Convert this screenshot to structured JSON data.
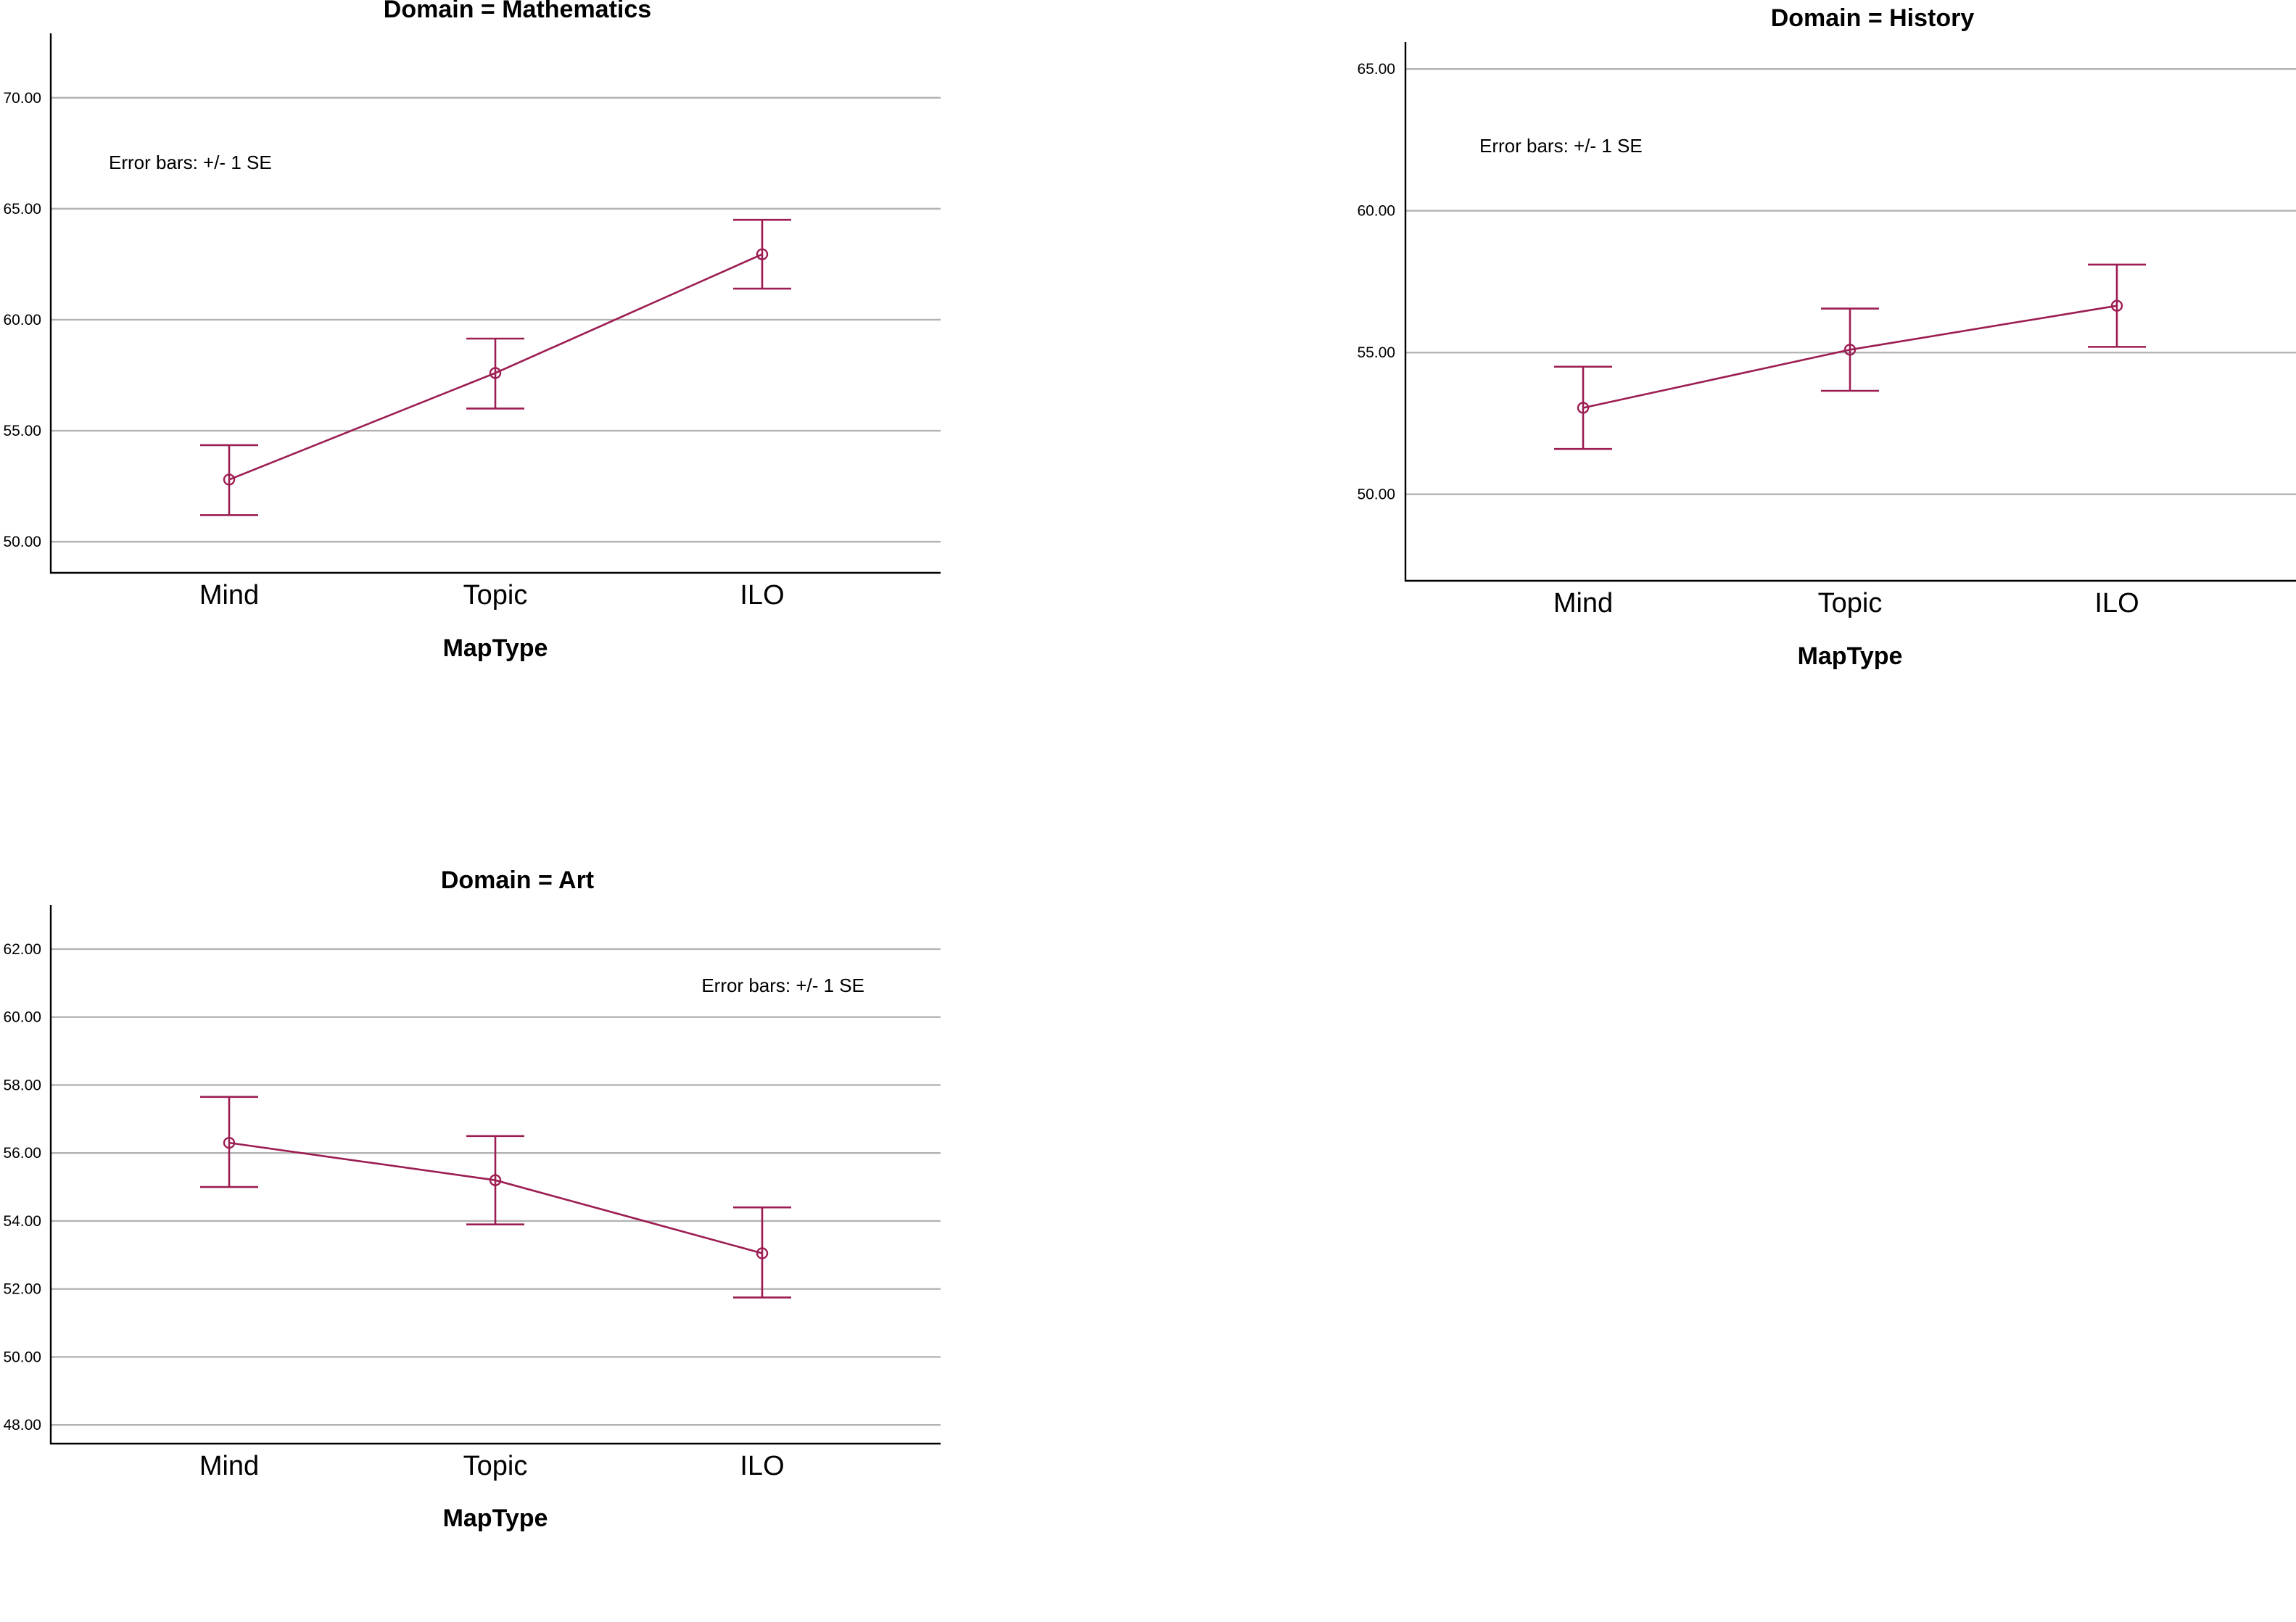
{
  "colors": {
    "series": "#9c1d52",
    "grid": "#b3b3b3",
    "axis": "#000000"
  },
  "chart_data": [
    {
      "type": "line",
      "title": "Domain = Mathematics",
      "xlabel": "MapType",
      "ylabel": "",
      "categories": [
        "Mind",
        "Topic",
        "ILO"
      ],
      "yticks": [
        50,
        55,
        60,
        65,
        70
      ],
      "ytick_labels": [
        "50.00",
        "55.00",
        "60.00",
        "65.00",
        "70.00"
      ],
      "ylim": [
        48.6,
        72.9
      ],
      "grid": true,
      "annotation": "Error bars: +/- 1 SE",
      "annotation_position": "top-left",
      "series": [
        {
          "values": [
            52.8,
            57.6,
            62.95
          ],
          "error_low": [
            51.2,
            56.0,
            61.4
          ],
          "error_high": [
            54.35,
            59.15,
            64.5
          ]
        }
      ]
    },
    {
      "type": "line",
      "title": "Domain = History",
      "xlabel": "MapType",
      "ylabel": "",
      "categories": [
        "Mind",
        "Topic",
        "ILO"
      ],
      "yticks": [
        50,
        55,
        60,
        65
      ],
      "ytick_labels": [
        "50.00",
        "55.00",
        "60.00",
        "65.00"
      ],
      "ylim": [
        46.95,
        65.95
      ],
      "grid": true,
      "annotation": "Error bars: +/- 1 SE",
      "annotation_position": "top-left",
      "series": [
        {
          "values": [
            53.05,
            55.1,
            56.65
          ],
          "error_low": [
            51.6,
            53.65,
            55.2
          ],
          "error_high": [
            54.5,
            56.55,
            58.1
          ]
        }
      ]
    },
    {
      "type": "line",
      "title": "Domain = Art",
      "xlabel": "MapType",
      "ylabel": "",
      "categories": [
        "Mind",
        "Topic",
        "ILO"
      ],
      "yticks": [
        48,
        50,
        52,
        54,
        56,
        58,
        60,
        62
      ],
      "ytick_labels": [
        "48.00",
        "50.00",
        "52.00",
        "54.00",
        "56.00",
        "58.00",
        "60.00",
        "62.00"
      ],
      "ylim": [
        47.45,
        63.3
      ],
      "grid": true,
      "annotation": "Error bars: +/- 1 SE",
      "annotation_position": "top-right",
      "series": [
        {
          "values": [
            56.3,
            55.2,
            53.05
          ],
          "error_low": [
            55.0,
            53.9,
            51.75
          ],
          "error_high": [
            57.65,
            56.5,
            54.4
          ]
        }
      ]
    }
  ]
}
